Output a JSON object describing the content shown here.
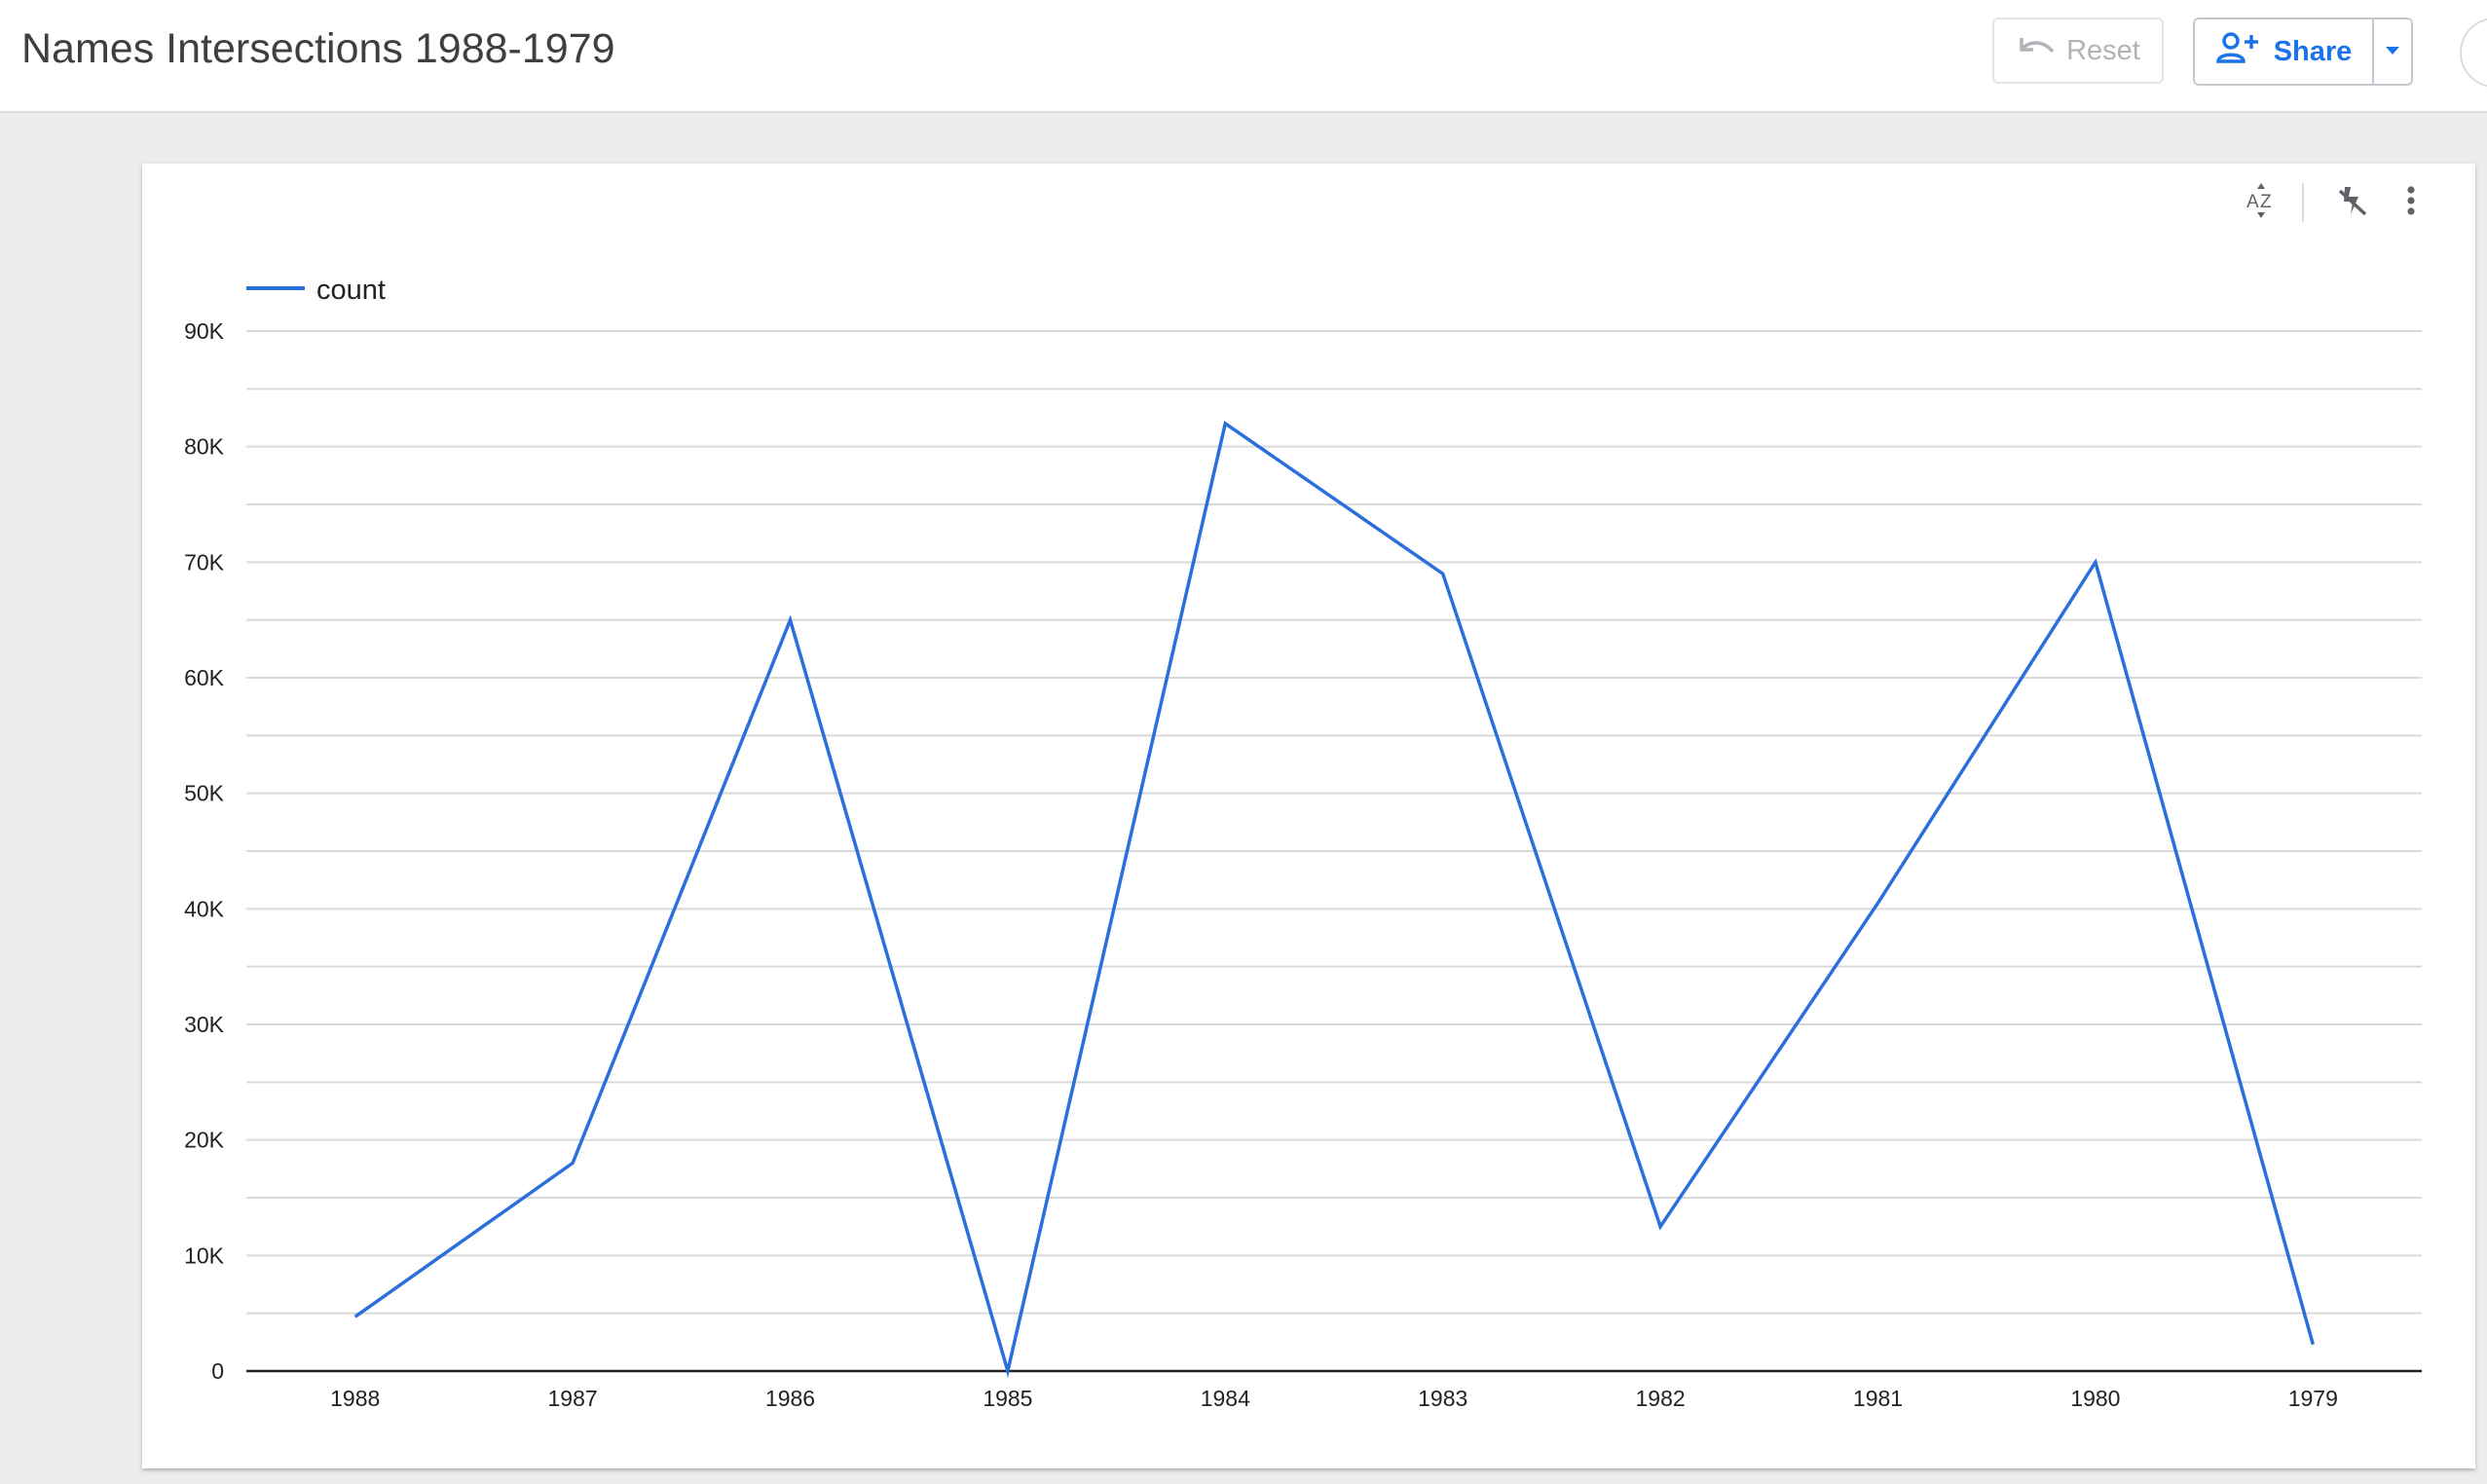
{
  "header": {
    "title": "Names Intersections 1988-1979",
    "reset_label": "Reset",
    "share_label": "Share"
  },
  "icons": {
    "reset": "undo-icon",
    "share": "person-add-icon",
    "share_dropdown": "caret-down-icon",
    "sort": "sort-az-icon",
    "cross_filter": "cross-filter-off-icon",
    "more": "more-vert-icon"
  },
  "colors": {
    "accent": "#1a73e8",
    "series": "#2a6fdb",
    "grid": "#d9d9d9"
  },
  "chart_data": {
    "type": "line",
    "categories": [
      "1988",
      "1987",
      "1986",
      "1985",
      "1984",
      "1983",
      "1982",
      "1981",
      "1980",
      "1979"
    ],
    "series": [
      {
        "name": "count",
        "values": [
          4700,
          18000,
          65000,
          0,
          82000,
          69000,
          12500,
          40500,
          70000,
          2300
        ]
      }
    ],
    "ylim": [
      0,
      90000
    ],
    "yticks": [
      0,
      10000,
      20000,
      30000,
      40000,
      50000,
      60000,
      70000,
      80000,
      90000
    ],
    "ytick_labels": [
      "0",
      "10K",
      "20K",
      "30K",
      "40K",
      "50K",
      "60K",
      "70K",
      "80K",
      "90K"
    ],
    "grid": true,
    "minor_grid": true,
    "legend_position": "top-left"
  }
}
